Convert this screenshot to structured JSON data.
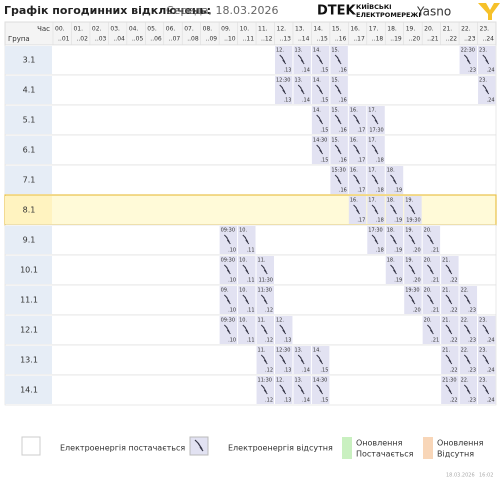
{
  "header": {
    "title": "Графік погодинних відключень:",
    "date": "Середа, 18.03.2026",
    "logo_dtek": "DTEK",
    "logo_kyiv_1": "КИЇВСЬКІ",
    "logo_kyiv_2": "ЕЛЕКТРОМЕРЕЖІ",
    "logo_yasno": "Yasno"
  },
  "table": {
    "corner_top": "Час",
    "corner_bottom": "Група",
    "hours": [
      {
        "top": "00.",
        "bottom": "..01"
      },
      {
        "top": "01.",
        "bottom": "..02"
      },
      {
        "top": "02.",
        "bottom": "..03"
      },
      {
        "top": "03.",
        "bottom": "..04"
      },
      {
        "top": "04.",
        "bottom": "..05"
      },
      {
        "top": "05.",
        "bottom": "..06"
      },
      {
        "top": "06.",
        "bottom": "..07"
      },
      {
        "top": "07.",
        "bottom": "..08"
      },
      {
        "top": "08.",
        "bottom": "..09"
      },
      {
        "top": "09.",
        "bottom": "..10"
      },
      {
        "top": "10.",
        "bottom": "..11"
      },
      {
        "top": "11.",
        "bottom": "..12"
      },
      {
        "top": "12.",
        "bottom": "..13"
      },
      {
        "top": "13.",
        "bottom": "..14"
      },
      {
        "top": "14.",
        "bottom": "..15"
      },
      {
        "top": "15.",
        "bottom": "..16"
      },
      {
        "top": "16.",
        "bottom": "..17"
      },
      {
        "top": "17.",
        "bottom": "..18"
      },
      {
        "top": "18.",
        "bottom": "..19"
      },
      {
        "top": "19.",
        "bottom": "..20"
      },
      {
        "top": "20.",
        "bottom": "..21"
      },
      {
        "top": "21.",
        "bottom": "..22"
      },
      {
        "top": "22.",
        "bottom": "..23"
      },
      {
        "top": "23.",
        "bottom": "..24"
      }
    ],
    "rows": [
      {
        "group": "3.1",
        "off": [
          {
            "col": 12,
            "top": "12.",
            "bottom": ".13"
          },
          {
            "col": 13,
            "top": "13.",
            "bottom": ".14"
          },
          {
            "col": 14,
            "top": "14.",
            "bottom": ".15"
          },
          {
            "col": 15,
            "top": "15.",
            "bottom": ".16"
          },
          {
            "col": 22,
            "top": "22:30",
            "bottom": ".23"
          },
          {
            "col": 23,
            "top": "23.",
            "bottom": ".24"
          }
        ]
      },
      {
        "group": "4.1",
        "off": [
          {
            "col": 12,
            "top": "12:30",
            "bottom": ".13"
          },
          {
            "col": 13,
            "top": "13.",
            "bottom": ".14"
          },
          {
            "col": 14,
            "top": "14.",
            "bottom": ".15"
          },
          {
            "col": 15,
            "top": "15.",
            "bottom": ".16"
          },
          {
            "col": 23,
            "top": "23.",
            "bottom": ".24"
          }
        ]
      },
      {
        "group": "5.1",
        "off": [
          {
            "col": 14,
            "top": "14.",
            "bottom": ".15"
          },
          {
            "col": 15,
            "top": "15.",
            "bottom": ".16"
          },
          {
            "col": 16,
            "top": "16.",
            "bottom": ".17"
          },
          {
            "col": 17,
            "top": "17.",
            "bottom": "17:30"
          }
        ]
      },
      {
        "group": "6.1",
        "off": [
          {
            "col": 14,
            "top": "14:30",
            "bottom": ".15"
          },
          {
            "col": 15,
            "top": "15.",
            "bottom": ".16"
          },
          {
            "col": 16,
            "top": "16.",
            "bottom": ".17"
          },
          {
            "col": 17,
            "top": "17.",
            "bottom": ".18"
          }
        ]
      },
      {
        "group": "7.1",
        "off": [
          {
            "col": 15,
            "top": "15:30",
            "bottom": ".16"
          },
          {
            "col": 16,
            "top": "16.",
            "bottom": ".17"
          },
          {
            "col": 17,
            "top": "17.",
            "bottom": ".18"
          },
          {
            "col": 18,
            "top": "18.",
            "bottom": ".19"
          }
        ]
      },
      {
        "group": "8.1",
        "off": [
          {
            "col": 16,
            "top": "16.",
            "bottom": ".17"
          },
          {
            "col": 17,
            "top": "17.",
            "bottom": ".18"
          },
          {
            "col": 18,
            "top": "18.",
            "bottom": ".19"
          },
          {
            "col": 19,
            "top": "19.",
            "bottom": "19:30"
          }
        ]
      },
      {
        "group": "9.1",
        "off": [
          {
            "col": 9,
            "top": "09:30",
            "bottom": ".10"
          },
          {
            "col": 10,
            "top": "10.",
            "bottom": ".11"
          },
          {
            "col": 17,
            "top": "17:30",
            "bottom": ".18"
          },
          {
            "col": 18,
            "top": "18.",
            "bottom": ".19"
          },
          {
            "col": 19,
            "top": "19.",
            "bottom": ".20"
          },
          {
            "col": 20,
            "top": "20.",
            "bottom": ".21"
          }
        ]
      },
      {
        "group": "10.1",
        "off": [
          {
            "col": 9,
            "top": "09:30",
            "bottom": ".10"
          },
          {
            "col": 10,
            "top": "10.",
            "bottom": ".11"
          },
          {
            "col": 11,
            "top": "11.",
            "bottom": "11:30"
          },
          {
            "col": 18,
            "top": "18.",
            "bottom": ".19"
          },
          {
            "col": 19,
            "top": "19.",
            "bottom": ".20"
          },
          {
            "col": 20,
            "top": "20.",
            "bottom": ".21"
          },
          {
            "col": 21,
            "top": "21.",
            "bottom": ".22"
          }
        ]
      },
      {
        "group": "11.1",
        "off": [
          {
            "col": 9,
            "top": "09.",
            "bottom": ".10"
          },
          {
            "col": 10,
            "top": "10.",
            "bottom": ".11"
          },
          {
            "col": 11,
            "top": "11:30",
            "bottom": ".12"
          },
          {
            "col": 19,
            "top": "19:30",
            "bottom": ".20"
          },
          {
            "col": 20,
            "top": "20.",
            "bottom": ".21"
          },
          {
            "col": 21,
            "top": "21.",
            "bottom": ".22"
          },
          {
            "col": 22,
            "top": "22.",
            "bottom": ".23"
          }
        ]
      },
      {
        "group": "12.1",
        "off": [
          {
            "col": 9,
            "top": "09:30",
            "bottom": ".10"
          },
          {
            "col": 10,
            "top": "10.",
            "bottom": ".11"
          },
          {
            "col": 11,
            "top": "11.",
            "bottom": ".12"
          },
          {
            "col": 12,
            "top": "12.",
            "bottom": ".13"
          },
          {
            "col": 20,
            "top": "20.",
            "bottom": ".21"
          },
          {
            "col": 21,
            "top": "21.",
            "bottom": ".22"
          },
          {
            "col": 22,
            "top": "22.",
            "bottom": ".23"
          },
          {
            "col": 23,
            "top": "23.",
            "bottom": ".24"
          }
        ]
      },
      {
        "group": "13.1",
        "off": [
          {
            "col": 11,
            "top": "11.",
            "bottom": ".12"
          },
          {
            "col": 12,
            "top": "12:30",
            "bottom": ".13"
          },
          {
            "col": 13,
            "top": "13.",
            "bottom": ".14"
          },
          {
            "col": 14,
            "top": "14.",
            "bottom": ".15"
          },
          {
            "col": 21,
            "top": "21.",
            "bottom": ".22"
          },
          {
            "col": 22,
            "top": "22.",
            "bottom": ".23"
          },
          {
            "col": 23,
            "top": "23.",
            "bottom": ".24"
          }
        ]
      },
      {
        "group": "14.1",
        "off": [
          {
            "col": 11,
            "top": "11:30",
            "bottom": ".12"
          },
          {
            "col": 12,
            "top": "12.",
            "bottom": ".13"
          },
          {
            "col": 13,
            "top": "13.",
            "bottom": ".14"
          },
          {
            "col": 14,
            "top": "14:30",
            "bottom": ".15"
          },
          {
            "col": 21,
            "top": "21:30",
            "bottom": ".22"
          },
          {
            "col": 22,
            "top": "22.",
            "bottom": ".23"
          },
          {
            "col": 23,
            "top": "23.",
            "bottom": ".24"
          }
        ]
      }
    ],
    "highlight_group": "8.1"
  },
  "legend": {
    "on": "Електроенергія постачається",
    "off": "Електроенергія відсутня",
    "upd_on_1": "Оновлення",
    "upd_on_2": "Постачається",
    "upd_off_1": "Оновлення",
    "upd_off_2": "Відсутня"
  },
  "footer": {
    "date": "18.03.2026",
    "time": "16:02"
  }
}
